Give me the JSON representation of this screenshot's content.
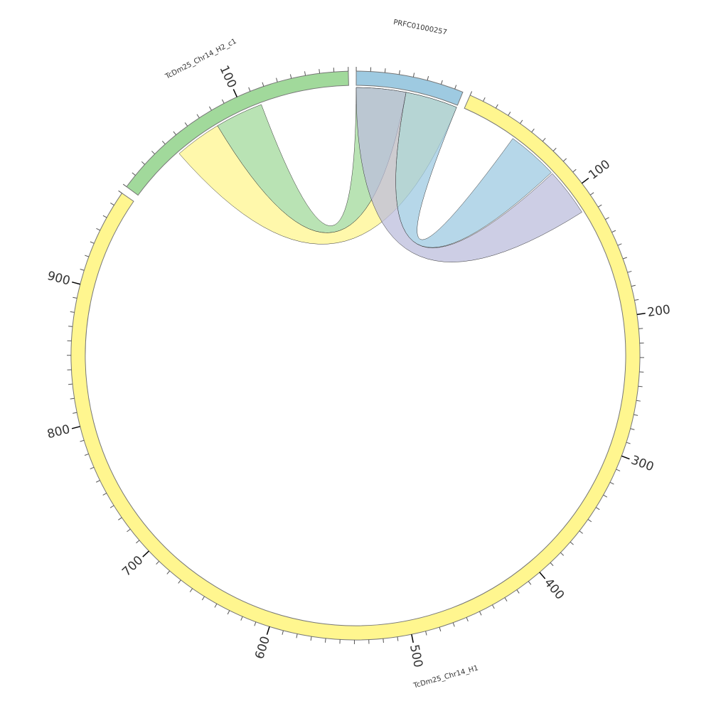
{
  "chart_data": {
    "type": "chord",
    "title": "",
    "chromosomes": [
      {
        "name": "TcDm25_Chr14_H2_c1",
        "length": 180,
        "color": "#a1d99b",
        "tick_labels": [
          "100"
        ]
      },
      {
        "name": "PRFC01000257",
        "length": 76,
        "color": "#9ecae1",
        "tick_labels": []
      },
      {
        "name": "TcDm25_Chr14_H1",
        "length": 970,
        "color": "#fff68f",
        "tick_labels": [
          "100",
          "200",
          "300",
          "400",
          "500",
          "600",
          "700",
          "800",
          "900"
        ]
      }
    ],
    "minor_tick_interval": 10,
    "major_tick_interval": 100,
    "links": [
      {
        "from": {
          "chr": "TcDm25_Chr14_H2_c1",
          "start": 78,
          "end": 114
        },
        "to": {
          "chr": "PRFC01000257",
          "start": 0,
          "end": 37
        },
        "color": "#a1d99b"
      },
      {
        "from": {
          "chr": "TcDm25_Chr14_H2_c1",
          "start": 43,
          "end": 78
        },
        "to": {
          "chr": "PRFC01000257",
          "start": 37,
          "end": 76
        },
        "color": "#fff68f"
      },
      {
        "from": {
          "chr": "PRFC01000257",
          "start": 37,
          "end": 76
        },
        "to": {
          "chr": "TcDm25_Chr14_H1",
          "start": 42,
          "end": 80
        },
        "color": "#9ecae1"
      },
      {
        "from": {
          "chr": "PRFC01000257",
          "start": 0,
          "end": 37
        },
        "to": {
          "chr": "TcDm25_Chr14_H1",
          "start": 81,
          "end": 117
        },
        "color": "#bcbddc"
      }
    ]
  }
}
